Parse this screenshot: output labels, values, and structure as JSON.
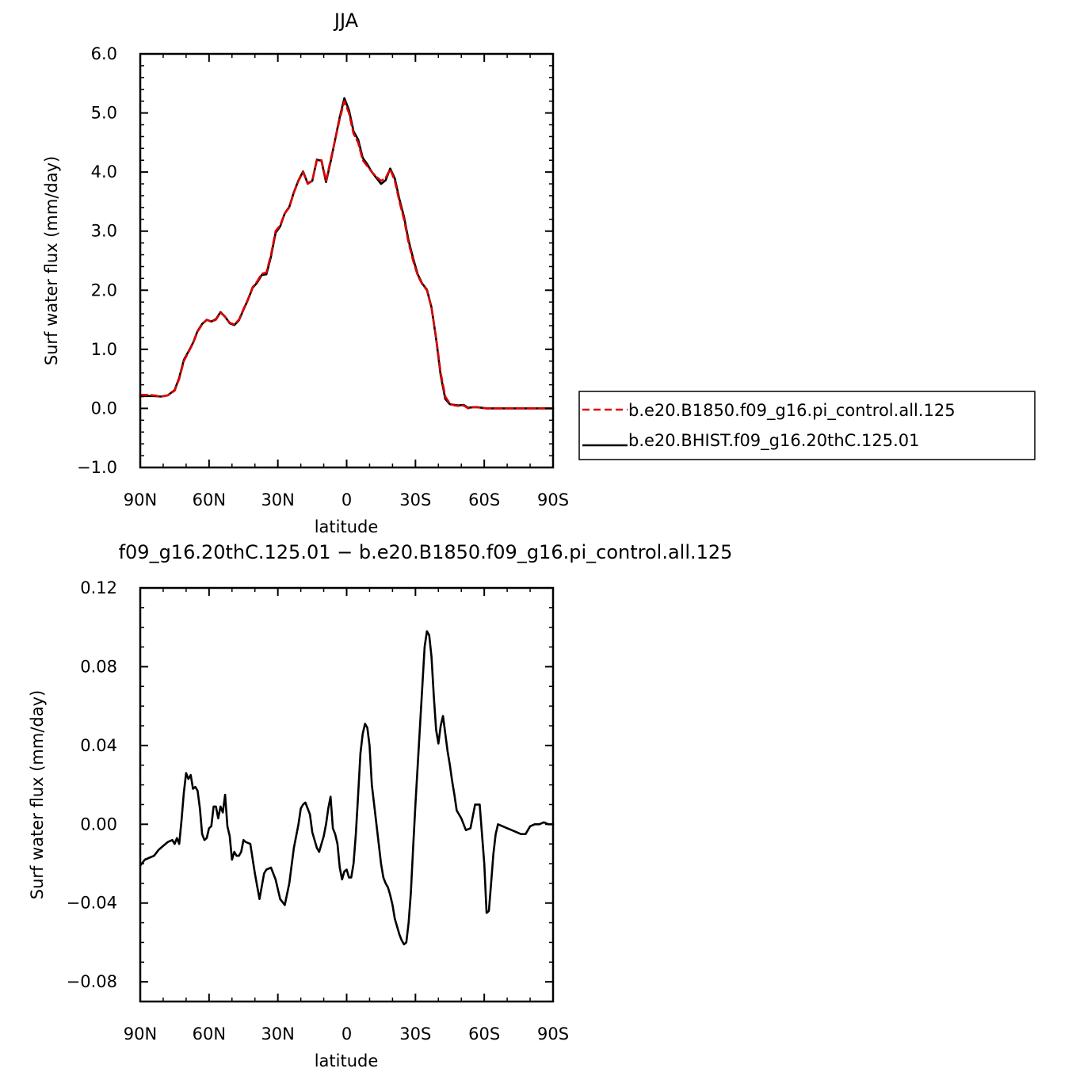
{
  "chart_data": [
    {
      "type": "line",
      "title": "JJA",
      "xlabel": "latitude",
      "ylabel": "Surf water flux (mm/day)",
      "ylim": [
        -1.0,
        6.0
      ],
      "y_ticks": [
        -1.0,
        0.0,
        1.0,
        2.0,
        3.0,
        4.0,
        5.0,
        6.0
      ],
      "y_tick_labels": [
        "−1.0",
        "0.0",
        "1.0",
        "2.0",
        "3.0",
        "4.0",
        "5.0",
        "6.0"
      ],
      "xlim": [
        90,
        -90
      ],
      "x_ticks": [
        90,
        60,
        30,
        0,
        -30,
        -60,
        -90
      ],
      "x_tick_labels": [
        "90N",
        "60N",
        "30N",
        "0",
        "30S",
        "60S",
        "90S"
      ],
      "grid": false,
      "legend_position": "right",
      "series": [
        {
          "name": "b.e20.B1850.f09_g16.pi_control.all.125",
          "color": "#e00000",
          "dash": "dashed",
          "x": [
            90,
            87,
            84,
            81,
            78,
            75,
            73,
            71,
            69,
            67,
            65,
            63,
            61,
            59,
            57,
            55,
            53,
            51,
            49,
            47,
            45,
            43,
            41,
            39,
            37,
            35,
            33,
            31,
            29,
            27,
            25,
            23,
            21,
            19,
            17,
            15,
            13,
            11,
            9,
            7,
            5,
            3,
            1,
            -1,
            -3,
            -5,
            -7,
            -9,
            -11,
            -13,
            -15,
            -17,
            -19,
            -21,
            -23,
            -25,
            -27,
            -29,
            -31,
            -33,
            -35,
            -37,
            -39,
            -41,
            -43,
            -45,
            -47,
            -49,
            -51,
            -53,
            -55,
            -57,
            -59,
            -61,
            -63,
            -65,
            -67,
            -69,
            -71,
            -74,
            -77,
            -80,
            -83,
            -86,
            -90
          ],
          "y": [
            0.23,
            0.23,
            0.22,
            0.2,
            0.22,
            0.3,
            0.5,
            0.8,
            0.95,
            1.1,
            1.3,
            1.42,
            1.5,
            1.47,
            1.5,
            1.62,
            1.55,
            1.45,
            1.42,
            1.5,
            1.68,
            1.85,
            2.05,
            2.15,
            2.28,
            2.3,
            2.6,
            3.0,
            3.1,
            3.3,
            3.4,
            3.65,
            3.85,
            4.0,
            3.8,
            3.85,
            4.2,
            4.2,
            3.85,
            4.2,
            4.55,
            4.9,
            5.2,
            5.0,
            4.65,
            4.5,
            4.2,
            4.1,
            4.0,
            3.92,
            3.85,
            3.9,
            4.05,
            3.85,
            3.5,
            3.2,
            2.8,
            2.5,
            2.25,
            2.1,
            2.0,
            1.7,
            1.2,
            0.6,
            0.2,
            0.08,
            0.05,
            0.04,
            0.05,
            0.0,
            0.02,
            0.02,
            0.01,
            0.0,
            0.0,
            0.0,
            0.0,
            0.0,
            0.0,
            0.0,
            0.0,
            0.0,
            0.0,
            0.0,
            0.0
          ]
        },
        {
          "name": "b.e20.BHIST.f09_g16.20thC.125.01",
          "color": "#000000",
          "dash": "solid",
          "x": [
            90,
            87,
            84,
            81,
            78,
            75,
            73,
            71,
            69,
            67,
            65,
            63,
            61,
            59,
            57,
            55,
            53,
            51,
            49,
            47,
            45,
            43,
            41,
            39,
            37,
            35,
            33,
            31,
            29,
            27,
            25,
            23,
            21,
            19,
            17,
            15,
            13,
            11,
            9,
            7,
            5,
            3,
            1,
            -1,
            -3,
            -5,
            -7,
            -9,
            -11,
            -13,
            -15,
            -17,
            -19,
            -21,
            -23,
            -25,
            -27,
            -29,
            -31,
            -33,
            -35,
            -37,
            -39,
            -41,
            -43,
            -45,
            -47,
            -49,
            -51,
            -53,
            -55,
            -57,
            -59,
            -61,
            -63,
            -65,
            -67,
            -69,
            -71,
            -74,
            -77,
            -80,
            -83,
            -86,
            -90
          ],
          "y": [
            0.21,
            0.21,
            0.21,
            0.2,
            0.22,
            0.31,
            0.52,
            0.82,
            0.96,
            1.11,
            1.31,
            1.43,
            1.5,
            1.47,
            1.51,
            1.63,
            1.55,
            1.44,
            1.41,
            1.49,
            1.67,
            1.84,
            2.04,
            2.13,
            2.26,
            2.27,
            2.57,
            2.97,
            3.08,
            3.3,
            3.41,
            3.66,
            3.86,
            4.01,
            3.81,
            3.85,
            4.21,
            4.19,
            3.83,
            4.17,
            4.55,
            4.93,
            5.25,
            5.05,
            4.69,
            4.55,
            4.24,
            4.13,
            4.0,
            3.9,
            3.8,
            3.86,
            4.06,
            3.89,
            3.54,
            3.24,
            2.84,
            2.54,
            2.27,
            2.11,
            2.01,
            1.71,
            1.18,
            0.56,
            0.16,
            0.07,
            0.06,
            0.05,
            0.06,
            0.01,
            0.02,
            0.02,
            0.01,
            0.0,
            0.0,
            0.0,
            0.0,
            0.0,
            0.0,
            0.0,
            0.0,
            0.0,
            0.0,
            0.0,
            0.0
          ]
        }
      ]
    },
    {
      "type": "line",
      "title": "f09_g16.20thC.125.01 − b.e20.B1850.f09_g16.pi_control.all.125",
      "xlabel": "latitude",
      "ylabel": "Surf water flux (mm/day)",
      "ylim": [
        -0.09,
        0.12
      ],
      "y_ticks": [
        -0.08,
        -0.04,
        0.0,
        0.04,
        0.08,
        0.12
      ],
      "y_tick_labels": [
        "−0.08",
        "−0.04",
        "0.00",
        "0.04",
        "0.08",
        "0.12"
      ],
      "xlim": [
        90,
        -90
      ],
      "x_ticks": [
        90,
        60,
        30,
        0,
        -30,
        -60,
        -90
      ],
      "x_tick_labels": [
        "90N",
        "60N",
        "30N",
        "0",
        "30S",
        "60S",
        "90S"
      ],
      "grid": false,
      "series": [
        {
          "color": "#000000",
          "dash": "solid",
          "x": [
            90,
            88,
            86,
            84,
            82,
            80,
            78,
            76,
            75,
            74,
            73,
            72,
            71,
            70,
            69,
            68,
            67,
            66,
            65,
            64,
            63,
            62,
            61,
            60,
            59,
            58,
            57,
            56,
            55,
            54,
            53,
            52,
            51,
            50,
            49,
            48,
            47,
            46,
            45,
            44,
            42,
            40,
            38,
            36,
            35,
            33,
            31,
            29,
            27,
            25,
            23,
            21,
            20,
            19,
            18,
            17,
            16,
            15,
            14,
            13,
            12,
            11,
            10,
            9,
            8,
            7,
            6,
            5,
            4,
            3,
            2,
            1,
            0,
            -1,
            -2,
            -3,
            -4,
            -5,
            -6,
            -7,
            -8,
            -9,
            -10,
            -11,
            -12,
            -13,
            -14,
            -15,
            -16,
            -17,
            -18,
            -19,
            -20,
            -21,
            -22,
            -23,
            -24,
            -25,
            -26,
            -27,
            -28,
            -29,
            -30,
            -31,
            -32,
            -33,
            -34,
            -35,
            -36,
            -37,
            -38,
            -39,
            -40,
            -41,
            -42,
            -43,
            -44,
            -45,
            -46,
            -47,
            -48,
            -50,
            -52,
            -54,
            -56,
            -58,
            -60,
            -61,
            -62,
            -63,
            -64,
            -65,
            -66,
            -68,
            -70,
            -72,
            -74,
            -76,
            -78,
            -80,
            -82,
            -84,
            -86,
            -88,
            -90
          ],
          "y": [
            -0.021,
            -0.018,
            -0.017,
            -0.016,
            -0.013,
            -0.011,
            -0.009,
            -0.008,
            -0.01,
            -0.007,
            -0.01,
            0.002,
            0.016,
            0.026,
            0.023,
            0.025,
            0.018,
            0.019,
            0.017,
            0.008,
            -0.005,
            -0.008,
            -0.007,
            -0.002,
            -0.001,
            0.009,
            0.009,
            0.003,
            0.009,
            0.006,
            0.015,
            -0.001,
            -0.006,
            -0.018,
            -0.014,
            -0.016,
            -0.016,
            -0.014,
            -0.008,
            -0.009,
            -0.01,
            -0.025,
            -0.038,
            -0.025,
            -0.023,
            -0.022,
            -0.028,
            -0.038,
            -0.041,
            -0.03,
            -0.012,
            0.0,
            0.008,
            0.01,
            0.011,
            0.008,
            0.005,
            -0.004,
            -0.008,
            -0.012,
            -0.014,
            -0.01,
            -0.006,
            0.0,
            0.008,
            0.014,
            -0.002,
            -0.005,
            -0.01,
            -0.022,
            -0.028,
            -0.024,
            -0.023,
            -0.027,
            -0.027,
            -0.02,
            -0.005,
            0.015,
            0.036,
            0.046,
            0.051,
            0.049,
            0.04,
            0.02,
            0.01,
            0.0,
            -0.01,
            -0.02,
            -0.027,
            -0.03,
            -0.032,
            -0.036,
            -0.041,
            -0.048,
            -0.052,
            -0.056,
            -0.059,
            -0.061,
            -0.06,
            -0.05,
            -0.035,
            -0.012,
            0.01,
            0.03,
            0.05,
            0.07,
            0.09,
            0.098,
            0.096,
            0.085,
            0.065,
            0.048,
            0.041,
            0.05,
            0.055,
            0.046,
            0.037,
            0.03,
            0.022,
            0.015,
            0.007,
            0.003,
            -0.003,
            -0.002,
            0.01,
            0.01,
            -0.02,
            -0.045,
            -0.044,
            -0.03,
            -0.015,
            -0.005,
            0.0,
            -0.001,
            -0.002,
            -0.003,
            -0.004,
            -0.005,
            -0.005,
            -0.001,
            0.0,
            0.0,
            0.001,
            0.0,
            0.0
          ]
        }
      ]
    }
  ]
}
